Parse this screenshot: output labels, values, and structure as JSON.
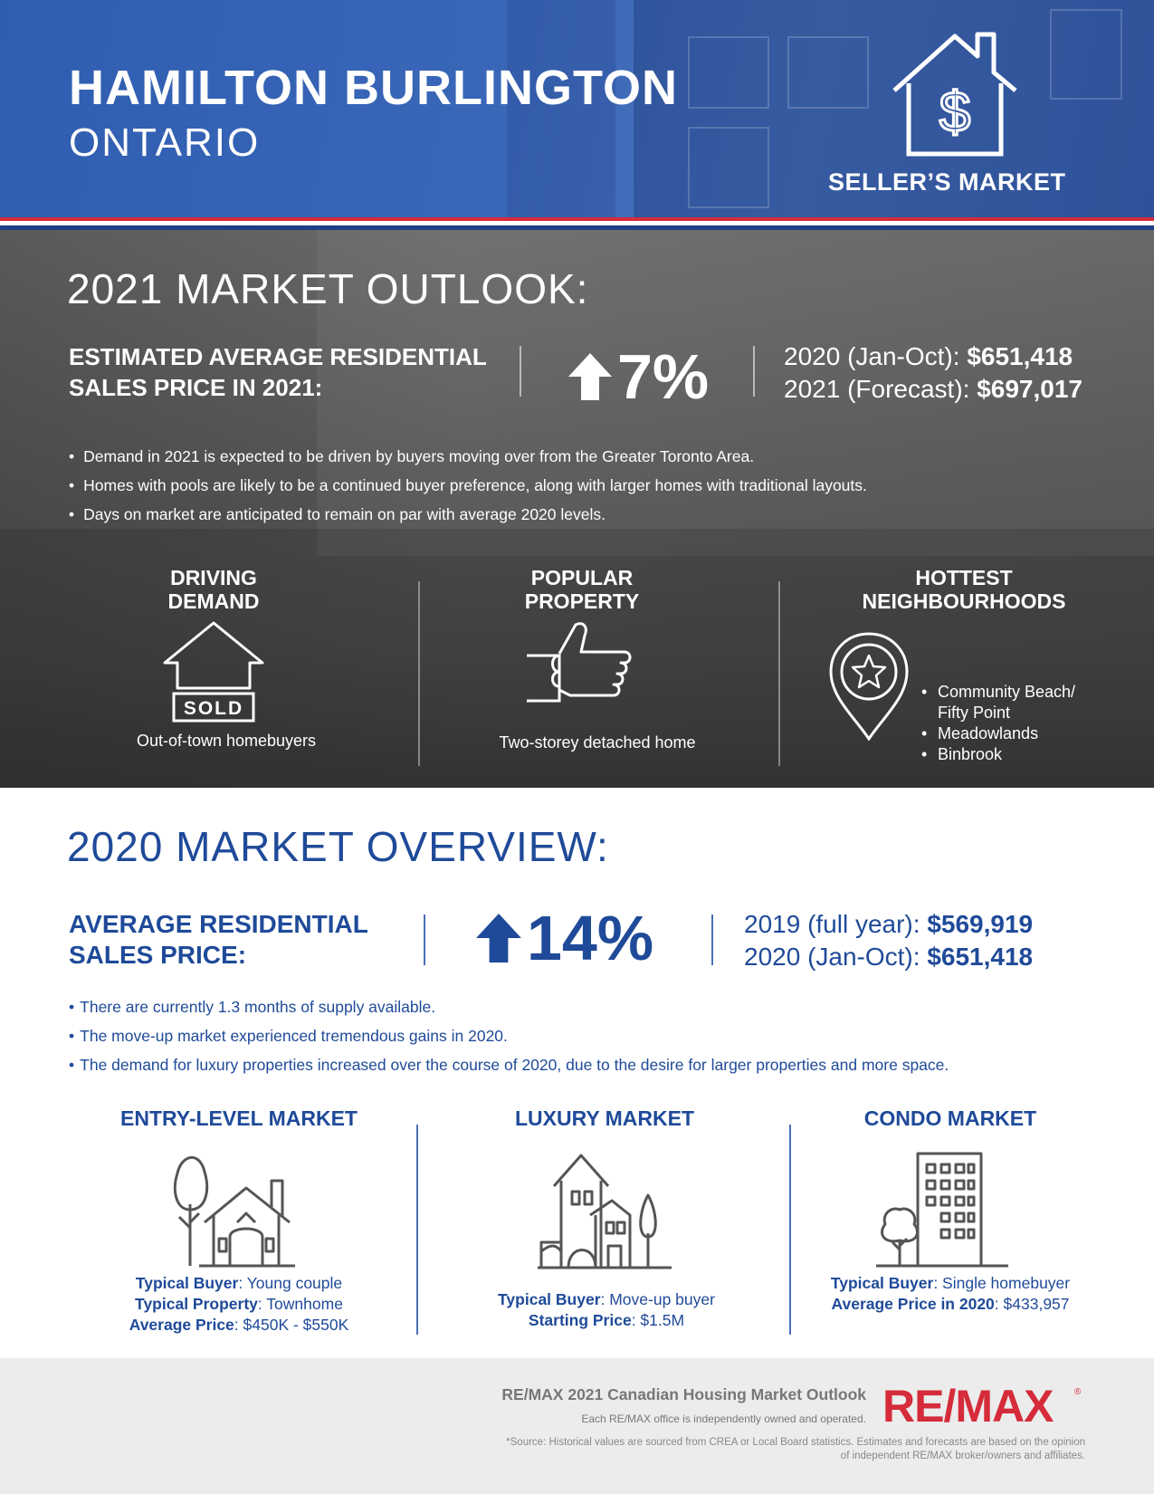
{
  "header": {
    "title": "HAMILTON BURLINGTON",
    "subtitle": "ONTARIO",
    "market_status": "SELLER’S MARKET",
    "house_icon": "house-dollar-icon"
  },
  "outlook": {
    "title": "2021 MARKET OUTLOOK:",
    "price_label": "ESTIMATED AVERAGE RESIDENTIAL SALES PRICE IN 2021:",
    "change": "7%",
    "price_rows": [
      {
        "label": "2020 (Jan-Oct): ",
        "value": "$651,418"
      },
      {
        "label": "2021 (Forecast): ",
        "value": "$697,017"
      }
    ],
    "bullets": [
      "Demand in 2021 is expected to be driven by buyers moving over from the Greater Toronto Area.",
      "Homes with pools are likely to be a continued buyer preference, along with larger homes with traditional layouts.",
      "Days on market are anticipated to remain on par with average 2020 levels."
    ],
    "columns": [
      {
        "heading": "DRIVING DEMAND",
        "caption": "Out-of-town homebuyers",
        "icon": "sold-house-icon",
        "icon_text": "SOLD"
      },
      {
        "heading": "POPULAR PROPERTY",
        "caption": "Two-storey detached home",
        "icon": "thumbs-up-icon"
      },
      {
        "heading": "HOTTEST NEIGHBOURHOODS",
        "icon": "location-star-icon",
        "items": [
          "Community Beach/ Fifty Point",
          "Meadowlands",
          "Binbrook"
        ]
      }
    ]
  },
  "overview": {
    "title": "2020 MARKET OVERVIEW:",
    "price_label": "AVERAGE RESIDENTIAL SALES PRICE:",
    "change": "14%",
    "price_rows": [
      {
        "label": "2019 (full year): ",
        "value": "$569,919"
      },
      {
        "label": "2020 (Jan-Oct): ",
        "value": "$651,418"
      }
    ],
    "bullets": [
      "There are currently 1.3 months of supply available.",
      "The move-up market experienced tremendous gains in 2020.",
      "The demand for luxury properties increased over the course of 2020, due to the desire for larger properties and more space."
    ],
    "markets": [
      {
        "heading": "ENTRY-LEVEL MARKET",
        "icon": "house-tree-icon",
        "rows": [
          {
            "k": "Typical Buyer",
            "v": ": Young couple"
          },
          {
            "k": "Typical Property",
            "v": ": Townhome"
          },
          {
            "k": "Average Price",
            "v": ": $450K - $550K"
          }
        ]
      },
      {
        "heading": "LUXURY MARKET",
        "icon": "luxury-home-icon",
        "rows": [
          {
            "k": "Typical Buyer",
            "v": ": Move-up buyer"
          },
          {
            "k": "Starting Price",
            "v": ": $1.5M"
          }
        ]
      },
      {
        "heading": "CONDO MARKET",
        "icon": "condo-building-icon",
        "rows": [
          {
            "k": "Typical Buyer",
            "v": ": Single homebuyer"
          },
          {
            "k": "Average Price in 2020",
            "v": ": $433,957"
          }
        ]
      }
    ]
  },
  "footer": {
    "title": "RE/MAX 2021 Canadian Housing Market Outlook",
    "disclaimer": "Each RE/MAX office is independently owned and operated.",
    "source": "*Source: Historical values are sourced from CREA or Local Board statistics. Estimates and forecasts are based on the opinion of independent RE/MAX broker/owners and affiliates.",
    "logo_text": "RE/MAX",
    "logo_reg": "®"
  },
  "colors": {
    "brand_blue": "#1f4a99",
    "header_blue": "#3a67b8",
    "remax_red": "#d52b3a",
    "gray_band": "#555555"
  }
}
